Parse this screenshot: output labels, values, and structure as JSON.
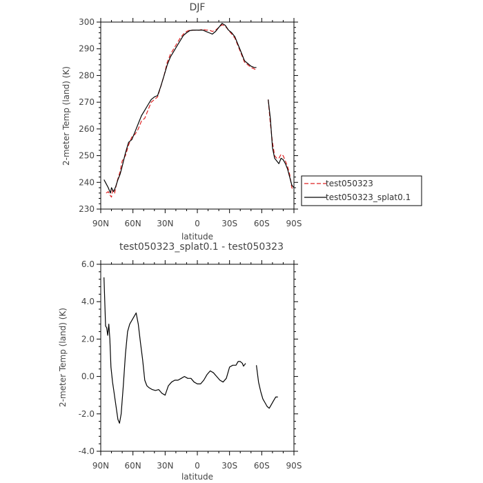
{
  "chart_data": [
    {
      "type": "line",
      "title": "DJF",
      "xlabel": "latitude",
      "ylabel": "2-meter Temp (land) (K)",
      "xlim": [
        90,
        -90
      ],
      "ylim": [
        230,
        300
      ],
      "x_tick_values": [
        90,
        60,
        30,
        0,
        -30,
        -60,
        -90
      ],
      "x_tick_labels": [
        "90N",
        "60N",
        "30N",
        "0",
        "30S",
        "60S",
        "90S"
      ],
      "y_tick_values": [
        230,
        240,
        250,
        260,
        270,
        280,
        290,
        300
      ],
      "y_tick_labels": [
        "230",
        "240",
        "250",
        "260",
        "270",
        "280",
        "290",
        "300"
      ],
      "legend": {
        "position": "right",
        "entries": [
          "test050323",
          "test050323_splat0.1"
        ]
      },
      "series": [
        {
          "name": "test050323",
          "color": "#dd2222",
          "dash": "dashed",
          "segments": [
            [
              [
                85,
                236
              ],
              [
                83,
                236.5
              ],
              [
                81,
                235
              ],
              [
                80,
                234.5
              ],
              [
                79,
                237
              ],
              [
                77,
                236
              ],
              [
                75,
                240
              ],
              [
                72,
                244
              ],
              [
                70,
                248
              ],
              [
                67,
                250
              ],
              [
                64,
                254
              ],
              [
                61,
                257
              ],
              [
                58,
                258
              ],
              [
                55,
                260
              ],
              [
                52,
                263
              ],
              [
                49,
                264
              ],
              [
                46,
                267
              ],
              [
                43,
                270
              ],
              [
                40,
                271
              ],
              [
                37,
                272
              ],
              [
                34,
                276
              ],
              [
                31,
                280
              ],
              [
                28,
                285
              ],
              [
                25,
                288
              ],
              [
                22,
                290
              ],
              [
                19,
                292
              ],
              [
                16,
                294
              ],
              [
                13,
                295.5
              ],
              [
                10,
                296.5
              ],
              [
                7,
                297
              ],
              [
                4,
                297
              ],
              [
                1,
                297
              ],
              [
                -2,
                297
              ],
              [
                -5,
                297.3
              ],
              [
                -8,
                297
              ],
              [
                -11,
                297
              ],
              [
                -14,
                296.5
              ],
              [
                -17,
                297
              ],
              [
                -20,
                298
              ],
              [
                -23,
                299
              ],
              [
                -26,
                298.5
              ],
              [
                -29,
                297
              ],
              [
                -32,
                295.5
              ],
              [
                -35,
                294
              ],
              [
                -38,
                291
              ],
              [
                -41,
                288
              ],
              [
                -44,
                285
              ],
              [
                -47,
                284
              ],
              [
                -50,
                283
              ],
              [
                -53,
                282.5
              ],
              [
                -55,
                282
              ]
            ],
            [
              [
                -66,
                271
              ],
              [
                -68,
                262
              ],
              [
                -70,
                255
              ],
              [
                -72,
                250
              ],
              [
                -74,
                249
              ],
              [
                -76,
                249
              ],
              [
                -78,
                250.5
              ],
              [
                -80,
                250
              ],
              [
                -82,
                248
              ],
              [
                -84,
                246
              ],
              [
                -86,
                243
              ],
              [
                -88,
                238
              ],
              [
                -90,
                237
              ]
            ]
          ]
        },
        {
          "name": "test050323_splat0.1",
          "color": "#000000",
          "dash": "solid",
          "segments": [
            [
              [
                87,
                241
              ],
              [
                85,
                239.5
              ],
              [
                83,
                238
              ],
              [
                81,
                236
              ],
              [
                80,
                238
              ],
              [
                78,
                236.5
              ],
              [
                76,
                238.5
              ],
              [
                74,
                241
              ],
              [
                72,
                243
              ],
              [
                70,
                246
              ],
              [
                67,
                251
              ],
              [
                64,
                255
              ],
              [
                61,
                256
              ],
              [
                58,
                259
              ],
              [
                55,
                262
              ],
              [
                52,
                265
              ],
              [
                49,
                267
              ],
              [
                46,
                269
              ],
              [
                43,
                271
              ],
              [
                40,
                272
              ],
              [
                37,
                272.5
              ],
              [
                34,
                276
              ],
              [
                31,
                280
              ],
              [
                28,
                284
              ],
              [
                25,
                287
              ],
              [
                22,
                289
              ],
              [
                19,
                291
              ],
              [
                16,
                293
              ],
              [
                13,
                295
              ],
              [
                10,
                296
              ],
              [
                7,
                296.8
              ],
              [
                4,
                297
              ],
              [
                1,
                297
              ],
              [
                -2,
                297
              ],
              [
                -5,
                297
              ],
              [
                -8,
                296.5
              ],
              [
                -11,
                296
              ],
              [
                -14,
                295.5
              ],
              [
                -17,
                296.5
              ],
              [
                -20,
                298
              ],
              [
                -23,
                299.5
              ],
              [
                -26,
                298.8
              ],
              [
                -29,
                297
              ],
              [
                -32,
                296
              ],
              [
                -35,
                294.5
              ],
              [
                -38,
                291.5
              ],
              [
                -41,
                288.5
              ],
              [
                -44,
                285.5
              ],
              [
                -47,
                284.5
              ],
              [
                -50,
                283.5
              ],
              [
                -53,
                283
              ],
              [
                -55,
                283
              ]
            ],
            [
              [
                -66,
                271
              ],
              [
                -68,
                264
              ],
              [
                -70,
                253
              ],
              [
                -72,
                249
              ],
              [
                -74,
                248
              ],
              [
                -76,
                247
              ],
              [
                -78,
                249
              ],
              [
                -80,
                248.5
              ],
              [
                -82,
                247
              ],
              [
                -84,
                245
              ],
              [
                -86,
                242
              ],
              [
                -88,
                239
              ],
              [
                -90,
                238
              ]
            ]
          ]
        }
      ]
    },
    {
      "type": "line",
      "title": "test050323_splat0.1 - test050323",
      "xlabel": "latitude",
      "ylabel": "2-meter Temp (land) (K)",
      "xlim": [
        90,
        -90
      ],
      "ylim": [
        -4.0,
        6.0
      ],
      "x_tick_values": [
        90,
        60,
        30,
        0,
        -30,
        -60,
        -90
      ],
      "x_tick_labels": [
        "90N",
        "60N",
        "30N",
        "0",
        "30S",
        "60S",
        "90S"
      ],
      "y_tick_values": [
        -4.0,
        -2.0,
        0.0,
        2.0,
        4.0,
        6.0
      ],
      "y_tick_labels": [
        "-4.0",
        "-2.0",
        "0.0",
        "2.0",
        "4.0",
        "6.0"
      ],
      "series": [
        {
          "color": "#000000",
          "dash": "solid",
          "segments": [
            [
              [
                87,
                5.3
              ],
              [
                85.5,
                2.7
              ],
              [
                84.5,
                2.6
              ],
              [
                83.5,
                2.2
              ],
              [
                82.5,
                2.8
              ],
              [
                81.5,
                2.0
              ],
              [
                80.5,
                0.5
              ],
              [
                79,
                -0.3
              ],
              [
                78,
                -0.7
              ],
              [
                76,
                -1.5
              ],
              [
                74,
                -2.3
              ],
              [
                72.5,
                -2.5
              ],
              [
                71,
                -2.0
              ],
              [
                69,
                -0.5
              ],
              [
                67,
                1.2
              ],
              [
                65,
                2.4
              ],
              [
                63,
                2.8
              ],
              [
                61,
                3.0
              ],
              [
                59,
                3.2
              ],
              [
                57,
                3.4
              ],
              [
                55,
                2.8
              ],
              [
                53,
                1.8
              ],
              [
                51,
                0.9
              ],
              [
                49,
                -0.2
              ],
              [
                47,
                -0.5
              ],
              [
                45,
                -0.6
              ],
              [
                42,
                -0.7
              ],
              [
                39,
                -0.75
              ],
              [
                36,
                -0.7
              ],
              [
                33,
                -0.9
              ],
              [
                30,
                -1.0
              ],
              [
                27,
                -0.5
              ],
              [
                24,
                -0.3
              ],
              [
                21,
                -0.2
              ],
              [
                18,
                -0.2
              ],
              [
                15,
                -0.1
              ],
              [
                12,
                0.0
              ],
              [
                9,
                -0.1
              ],
              [
                6,
                -0.1
              ],
              [
                3,
                -0.3
              ],
              [
                0,
                -0.4
              ],
              [
                -3,
                -0.4
              ],
              [
                -6,
                -0.2
              ],
              [
                -9,
                0.1
              ],
              [
                -12,
                0.3
              ],
              [
                -15,
                0.2
              ],
              [
                -18,
                0.0
              ],
              [
                -21,
                -0.2
              ],
              [
                -24,
                -0.3
              ],
              [
                -27,
                -0.1
              ],
              [
                -30,
                0.5
              ],
              [
                -33,
                0.6
              ],
              [
                -36,
                0.6
              ],
              [
                -38,
                0.8
              ],
              [
                -40,
                0.8
              ],
              [
                -42,
                0.7
              ],
              [
                -43,
                0.55
              ],
              [
                -45,
                0.7
              ]
            ],
            [
              [
                -55,
                0.6
              ],
              [
                -57,
                -0.3
              ],
              [
                -59,
                -0.8
              ],
              [
                -61,
                -1.2
              ],
              [
                -63,
                -1.4
              ],
              [
                -65,
                -1.6
              ],
              [
                -67,
                -1.7
              ],
              [
                -69,
                -1.5
              ],
              [
                -71,
                -1.3
              ],
              [
                -73,
                -1.1
              ],
              [
                -75,
                -1.1
              ]
            ]
          ]
        }
      ]
    }
  ]
}
